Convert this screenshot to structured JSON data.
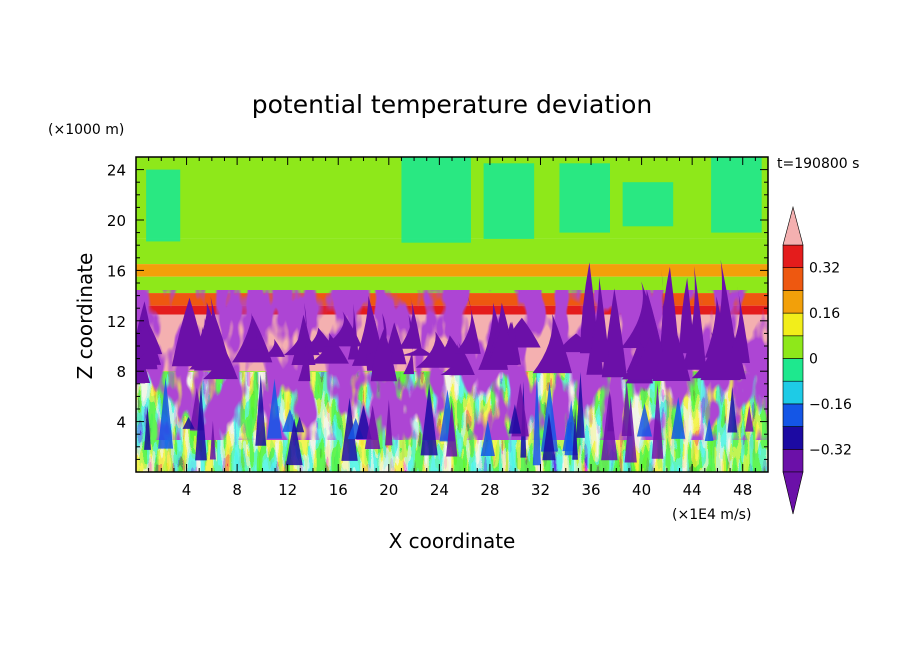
{
  "chart_data": {
    "type": "heatmap",
    "title": "potential temperature deviation",
    "xlabel": "X coordinate",
    "ylabel": "Z coordinate",
    "x_unit": "(×1E4 m/s)",
    "y_unit": "(×1000 m)",
    "time_label": "t=190800 s",
    "xlim": [
      0,
      50
    ],
    "ylim": [
      0,
      25
    ],
    "x_ticks": [
      4,
      8,
      12,
      16,
      20,
      24,
      28,
      32,
      36,
      40,
      44,
      48
    ],
    "y_ticks": [
      4,
      8,
      12,
      16,
      20,
      24
    ],
    "colorbar": {
      "levels": [
        -0.4,
        -0.32,
        -0.24,
        -0.16,
        -0.08,
        0,
        0.08,
        0.16,
        0.24,
        0.32,
        0.4
      ],
      "labels": [
        "0.32",
        "0.16",
        "0",
        "−0.16",
        "−0.32"
      ],
      "label_values": [
        0.32,
        0.16,
        0,
        -0.16,
        -0.32
      ],
      "colors": [
        "#6b10a8",
        "#1c0aa2",
        "#1456e6",
        "#1ecbe6",
        "#1ee88e",
        "#8ee81a",
        "#f2ee1a",
        "#f2a00a",
        "#ee5810",
        "#e41c1c"
      ],
      "over_color": "#f4b0b0",
      "under_color": "#6b10a8",
      "extend": "both"
    },
    "regions": [
      {
        "z_range": [
          18.5,
          25
        ],
        "value": 0.04,
        "note": "upper layer, green with cyan patches on right"
      },
      {
        "z_range": [
          16.5,
          18.5
        ],
        "value": 0.02
      },
      {
        "z_range": [
          15.5,
          16.5
        ],
        "value": 0.16
      },
      {
        "z_range": [
          14.2,
          15.5
        ],
        "value": 0.06
      },
      {
        "z_range": [
          13.2,
          14.2
        ],
        "value": 0.26
      },
      {
        "z_range": [
          12.5,
          13.2
        ],
        "value": 0.36
      },
      {
        "z_range": [
          8,
          12.5
        ],
        "value": 0.45,
        "note": "mixed pink and purple plumes"
      },
      {
        "z_range": [
          0,
          8
        ],
        "value": 0.0,
        "note": "turbulent multicolor bands"
      }
    ]
  }
}
